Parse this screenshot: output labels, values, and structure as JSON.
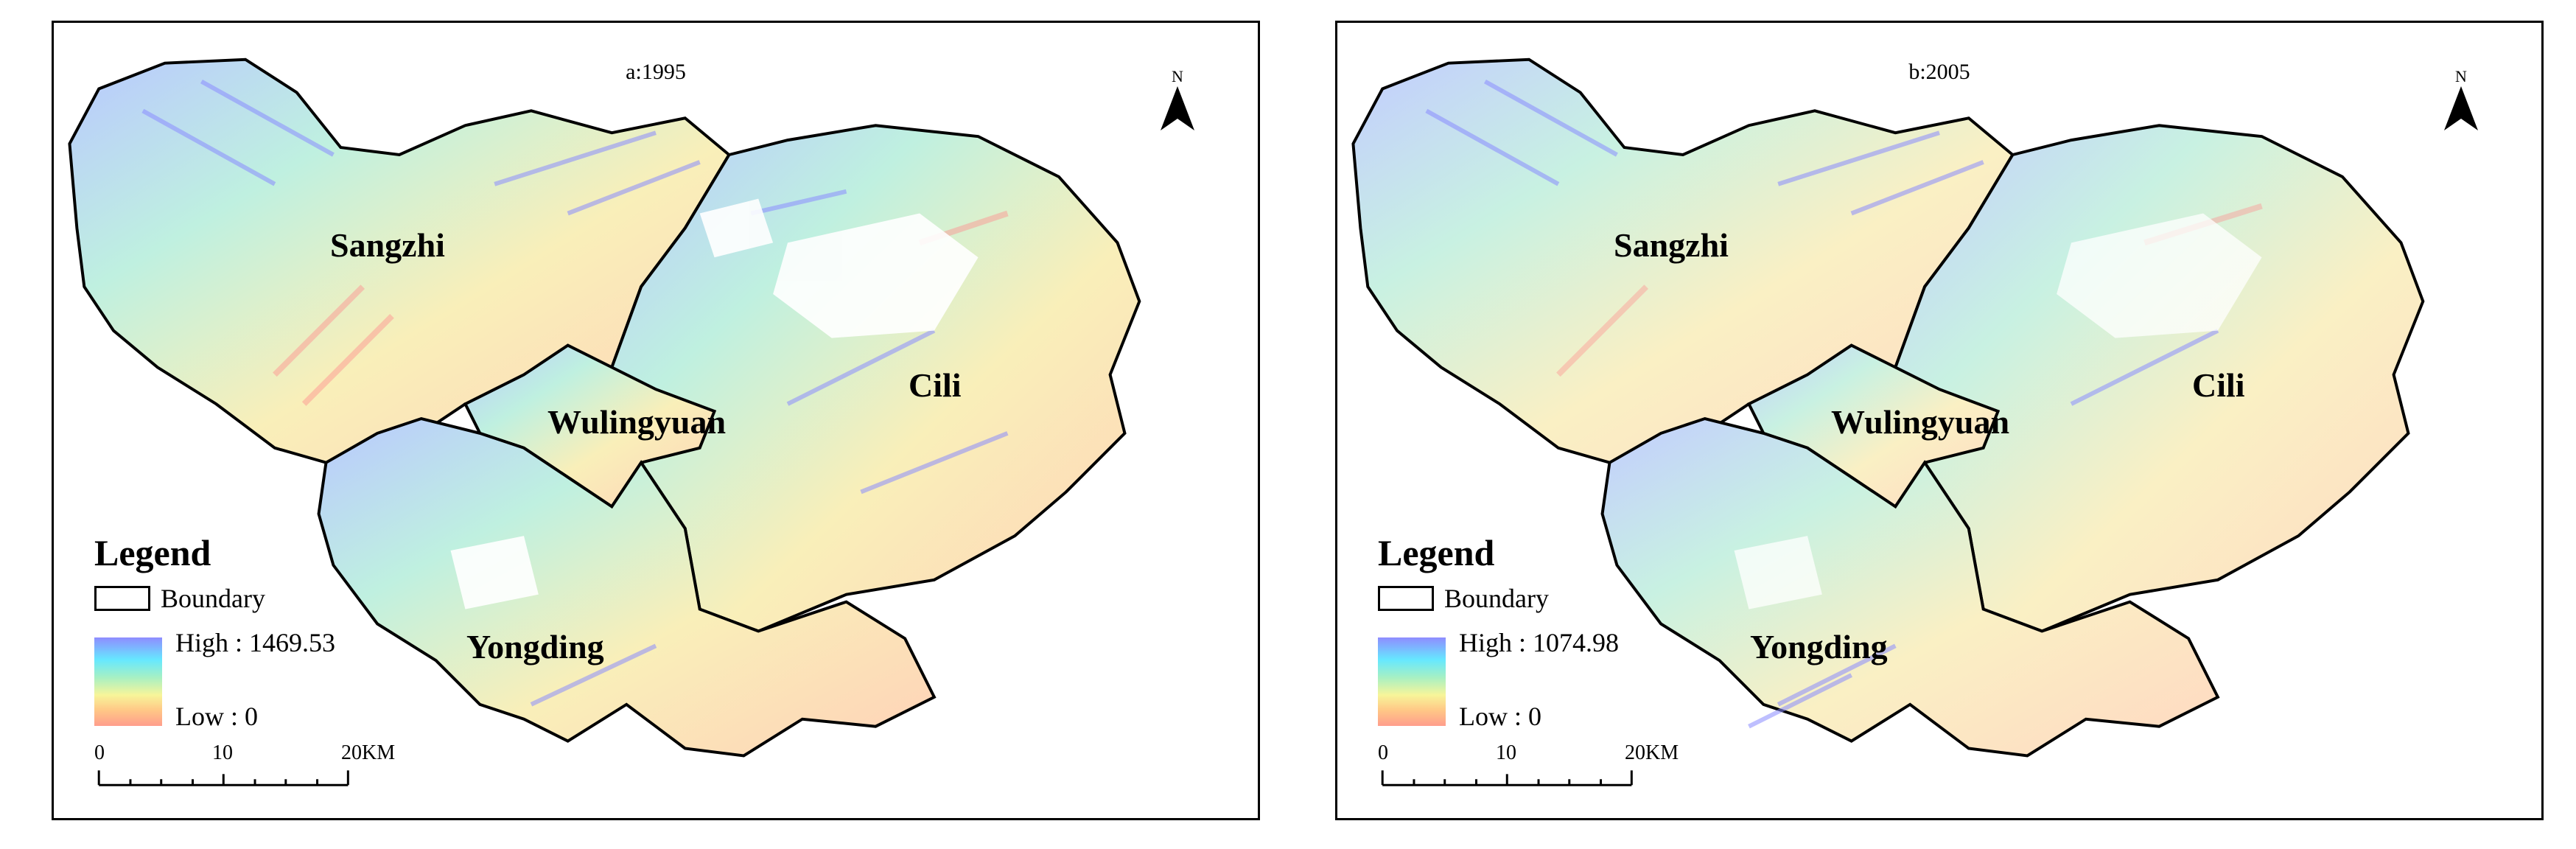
{
  "panels": [
    {
      "id": "a",
      "title": "a:1995",
      "legend": {
        "title": "Legend",
        "boundary_label": "Boundary",
        "high_label": "High : 1469.53",
        "low_label": "Low : 0"
      }
    },
    {
      "id": "b",
      "title": "b:2005",
      "legend": {
        "title": "Legend",
        "boundary_label": "Boundary",
        "high_label": "High : 1074.98",
        "low_label": "Low : 0"
      }
    }
  ],
  "regions": {
    "sangzhi": "Sangzhi",
    "wulingyuan": "Wulingyuan",
    "cili": "Cili",
    "yongding": "Yongding"
  },
  "north_label": "N",
  "scale_labels": {
    "zero": "0",
    "ten": "10",
    "twenty": "20KM"
  },
  "colors": {
    "high": "#8f8cff",
    "mid_high": "#66e8ff",
    "mid": "#a6f0c4",
    "mid_low": "#f7f59a",
    "low": "#ff9d8c",
    "boundary": "#000000"
  }
}
